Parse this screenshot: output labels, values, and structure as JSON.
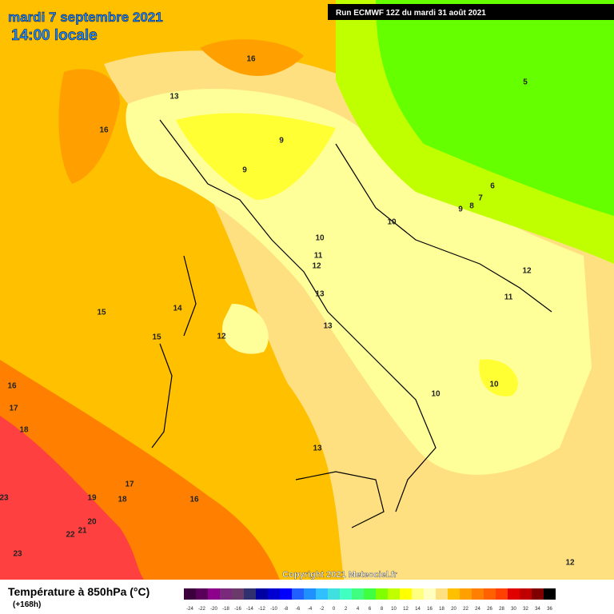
{
  "header": {
    "date": "mardi 7 septembre 2021",
    "time": "14:00 locale",
    "run": "Run ECMWF 12Z du mardi 31 août 2021"
  },
  "map": {
    "contour_labels": [
      16,
      13,
      16,
      9,
      9,
      5,
      6,
      7,
      8,
      9,
      10,
      10,
      11,
      12,
      12,
      13,
      11,
      14,
      15,
      13,
      15,
      12,
      16,
      10,
      10,
      17,
      18,
      13,
      17,
      19,
      18,
      16,
      23,
      20,
      21,
      22,
      23,
      12
    ],
    "copyright": "Copyright 2021 Meteociel.fr"
  },
  "legend": {
    "title": "Température à 850hPa (°C)",
    "subtitle": "(+168h)",
    "values": [
      -24,
      -22,
      -20,
      -18,
      -16,
      -14,
      -12,
      -10,
      -8,
      -6,
      -4,
      -2,
      0,
      2,
      4,
      6,
      8,
      10,
      12,
      14,
      16,
      18,
      20,
      22,
      24,
      26,
      28,
      30,
      32,
      34,
      36
    ],
    "colors": [
      "#3c003c",
      "#5a005a",
      "#8c008c",
      "#7a2a7a",
      "#6a3a6a",
      "#303070",
      "#0000a0",
      "#0000d0",
      "#0000ff",
      "#2060ff",
      "#2090ff",
      "#30c0ff",
      "#40e0e0",
      "#40ffc0",
      "#40ff80",
      "#40ff40",
      "#80ff00",
      "#c0ff00",
      "#ffff00",
      "#ffff80",
      "#ffffc0",
      "#ffe080",
      "#ffc000",
      "#ffa000",
      "#ff8000",
      "#ff6000",
      "#ff4000",
      "#e00000",
      "#c00000",
      "#800000",
      "#000000"
    ]
  }
}
